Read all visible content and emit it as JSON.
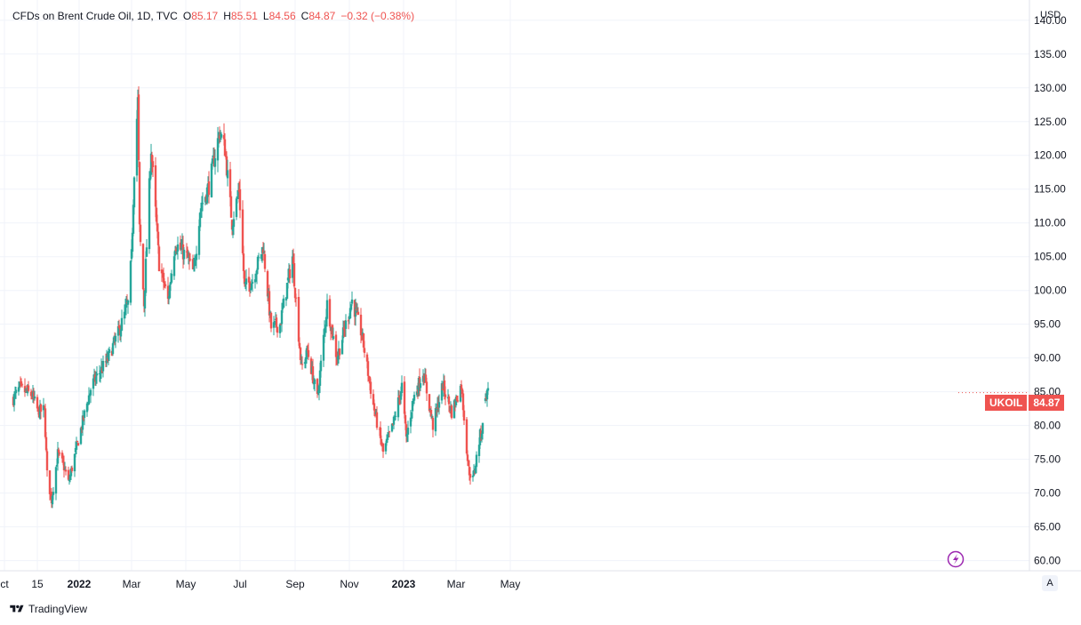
{
  "legend": {
    "title": "CFDs on Brent Crude Oil, 1D, TVC",
    "open_label": "O",
    "open": "85.17",
    "high_label": "H",
    "high": "85.51",
    "low_label": "L",
    "low": "84.56",
    "close_label": "C",
    "close": "84.87",
    "change": "−0.32 (−0.38%)"
  },
  "currency": "USD",
  "symbol_tag": "UKOIL",
  "last_price": "84.87",
  "auto_label": "A",
  "brand": "TradingView",
  "colors": {
    "up": "#26a69a",
    "down": "#ef5350",
    "grid": "#f0f3fa",
    "accent": "#9c27b0"
  },
  "chart_data": {
    "type": "candlestick",
    "x_tick_labels": [
      "ct",
      "15",
      "2022",
      "Mar",
      "May",
      "Jul",
      "Sep",
      "Nov",
      "2023",
      "Mar",
      "May"
    ],
    "y_tick_labels": [
      "60.00",
      "65.00",
      "70.00",
      "75.00",
      "80.00",
      "85.00",
      "90.00",
      "95.00",
      "100.00",
      "105.00",
      "110.00",
      "115.00",
      "120.00",
      "125.00",
      "130.00",
      "135.00",
      "140.00"
    ],
    "ylim": [
      58.5,
      143
    ],
    "grid": true,
    "close_anchors": [
      [
        "2021-10-19",
        84.0
      ],
      [
        "2021-10-26",
        85.5
      ],
      [
        "2021-11-09",
        84.5
      ],
      [
        "2021-11-16",
        82.0
      ],
      [
        "2021-11-23",
        82.3
      ],
      [
        "2021-11-26",
        72.7
      ],
      [
        "2021-12-01",
        69.0
      ],
      [
        "2021-12-08",
        75.8
      ],
      [
        "2021-12-15",
        73.9
      ],
      [
        "2021-12-20",
        71.5
      ],
      [
        "2021-12-31",
        77.8
      ],
      [
        "2022-01-15",
        86.0
      ],
      [
        "2022-02-01",
        89.5
      ],
      [
        "2022-02-15",
        94.0
      ],
      [
        "2022-02-25",
        98.0
      ],
      [
        "2022-03-01",
        105.0
      ],
      [
        "2022-03-04",
        118.0
      ],
      [
        "2022-03-08",
        128.0
      ],
      [
        "2022-03-10",
        109.0
      ],
      [
        "2022-03-15",
        98.0
      ],
      [
        "2022-03-23",
        121.0
      ],
      [
        "2022-04-01",
        104.0
      ],
      [
        "2022-04-11",
        98.5
      ],
      [
        "2022-04-19",
        107.0
      ],
      [
        "2022-05-02",
        105.0
      ],
      [
        "2022-05-10",
        102.5
      ],
      [
        "2022-05-17",
        112.0
      ],
      [
        "2022-05-27",
        115.5
      ],
      [
        "2022-06-08",
        123.5
      ],
      [
        "2022-06-14",
        121.0
      ],
      [
        "2022-06-22",
        110.0
      ],
      [
        "2022-06-30",
        115.0
      ],
      [
        "2022-07-06",
        100.5
      ],
      [
        "2022-07-15",
        101.5
      ],
      [
        "2022-07-27",
        106.5
      ],
      [
        "2022-08-05",
        94.5
      ],
      [
        "2022-08-15",
        95.0
      ],
      [
        "2022-08-29",
        105.0
      ],
      [
        "2022-09-08",
        88.5
      ],
      [
        "2022-09-15",
        91.0
      ],
      [
        "2022-09-26",
        84.0
      ],
      [
        "2022-10-07",
        98.0
      ],
      [
        "2022-10-18",
        90.0
      ],
      [
        "2022-10-25",
        93.5
      ],
      [
        "2022-11-04",
        98.5
      ],
      [
        "2022-11-15",
        93.5
      ],
      [
        "2022-11-28",
        83.0
      ],
      [
        "2022-12-09",
        76.0
      ],
      [
        "2022-12-20",
        80.0
      ],
      [
        "2022-12-30",
        85.9
      ],
      [
        "2023-01-04",
        78.0
      ],
      [
        "2023-01-12",
        84.0
      ],
      [
        "2023-01-23",
        88.0
      ],
      [
        "2023-02-03",
        80.0
      ],
      [
        "2023-02-14",
        86.0
      ],
      [
        "2023-02-24",
        82.0
      ],
      [
        "2023-03-07",
        86.0
      ],
      [
        "2023-03-15",
        73.5
      ],
      [
        "2023-03-20",
        72.0
      ],
      [
        "2023-03-28",
        78.5
      ],
      [
        "2023-03-31",
        79.8
      ],
      [
        "2023-04-03",
        84.9
      ],
      [
        "2023-04-06",
        84.9
      ]
    ]
  }
}
